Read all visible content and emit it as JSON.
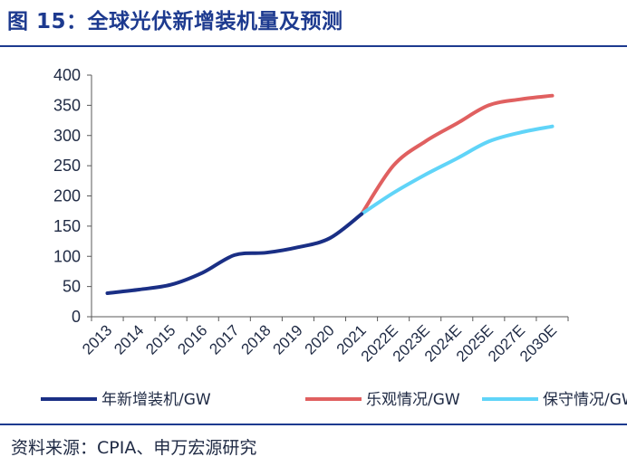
{
  "title": "图 15：全球光伏新增装机量及预测",
  "source": "资料来源：CPIA、申万宏源研究",
  "chart_data": {
    "type": "line",
    "categories": [
      "2013",
      "2014",
      "2015",
      "2016",
      "2017",
      "2018",
      "2019",
      "2020",
      "2021",
      "2022E",
      "2023E",
      "2024E",
      "2025E",
      "2027E",
      "2030E"
    ],
    "ylim": [
      0,
      400
    ],
    "yticks": [
      0,
      50,
      100,
      150,
      200,
      250,
      300,
      350,
      400
    ],
    "xlabel": "",
    "ylabel": "",
    "legend_position": "bottom",
    "grid": false,
    "series": [
      {
        "name": "年新增装机/GW",
        "color": "#1a2f85",
        "values": [
          39,
          45,
          53,
          73,
          102,
          106,
          115,
          130,
          170,
          null,
          null,
          null,
          null,
          null,
          null
        ]
      },
      {
        "name": "乐观情况/GW",
        "color": "#e06060",
        "values": [
          null,
          null,
          null,
          null,
          null,
          null,
          null,
          null,
          170,
          250,
          290,
          320,
          350,
          360,
          366
        ]
      },
      {
        "name": "保守情况/GW",
        "color": "#60d4f8",
        "values": [
          null,
          null,
          null,
          null,
          null,
          null,
          null,
          null,
          170,
          205,
          235,
          262,
          290,
          305,
          315
        ]
      }
    ]
  }
}
